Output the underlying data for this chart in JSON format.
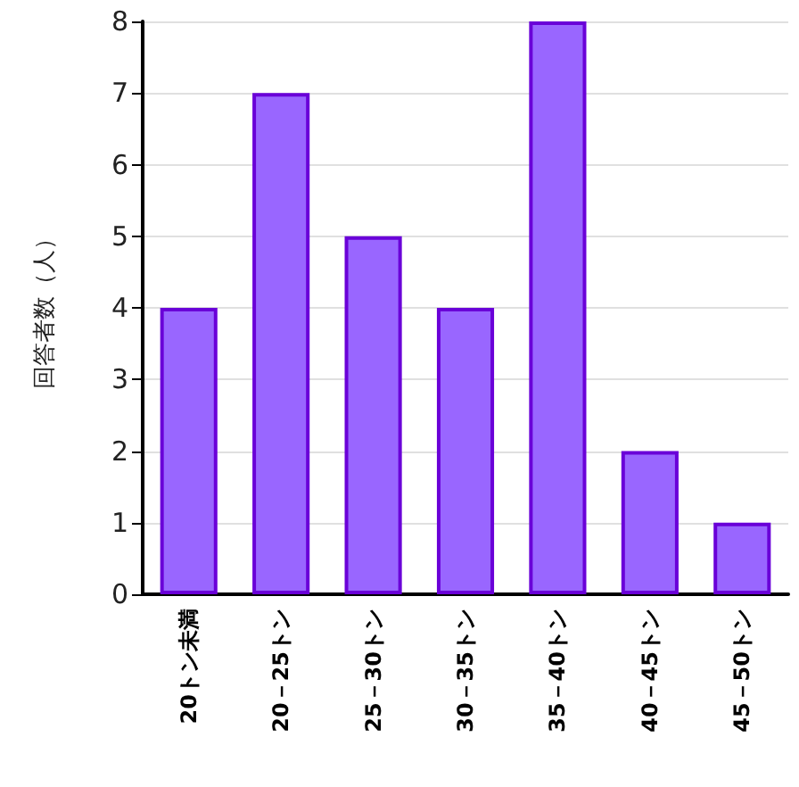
{
  "chart_data": {
    "type": "bar",
    "ylabel": "回答者数（人）",
    "categories": [
      "20トン未満",
      "20－25トン",
      "25－30トン",
      "30－35トン",
      "35－40トン",
      "40－45トン",
      "45－50トン"
    ],
    "values": [
      4,
      7,
      5,
      4,
      8,
      2,
      1
    ],
    "color": "#9966ff",
    "ylim": [
      0,
      8
    ],
    "yticks": [
      0,
      1,
      2,
      3,
      4,
      5,
      6,
      7,
      8
    ],
    "grid": "y"
  }
}
